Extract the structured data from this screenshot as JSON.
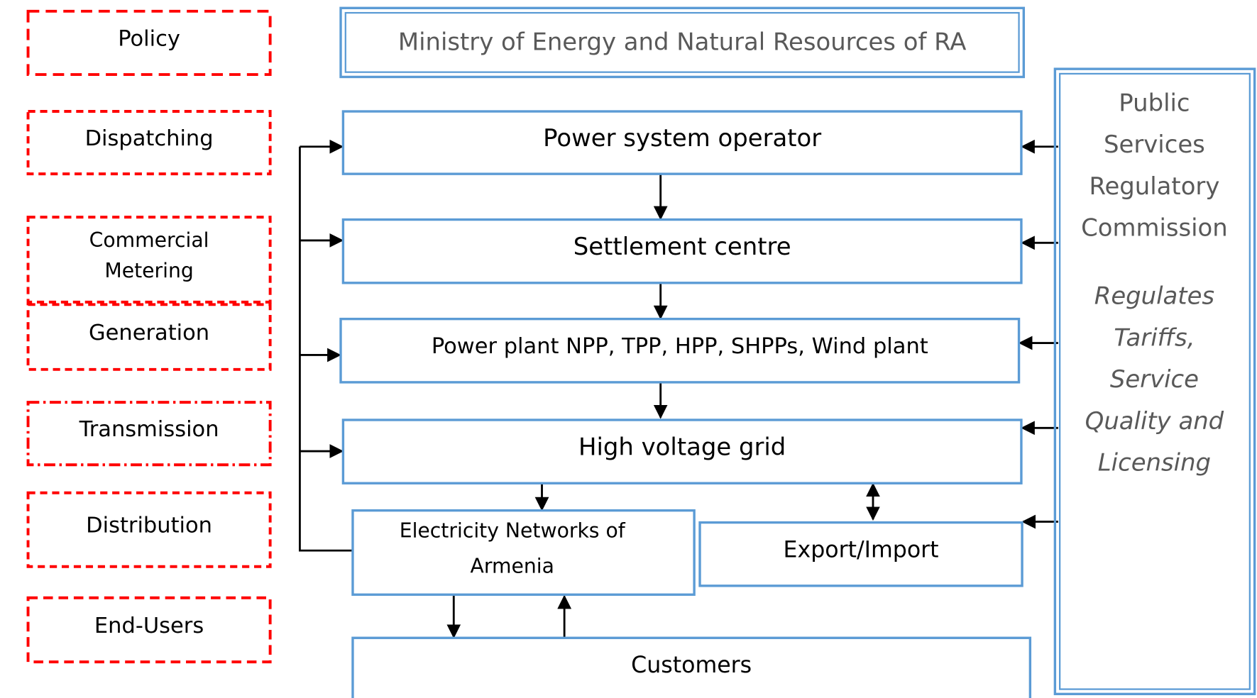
{
  "roles": [
    {
      "lines": [
        "Policy"
      ]
    },
    {
      "lines": [
        "Dispatching"
      ]
    },
    {
      "lines": [
        "Commercial",
        "Metering"
      ]
    },
    {
      "lines": [
        "Generation"
      ]
    },
    {
      "lines": [
        "Transmission"
      ]
    },
    {
      "lines": [
        "Distribution"
      ]
    },
    {
      "lines": [
        "End-Users"
      ]
    }
  ],
  "ministry": "Ministry of Energy and Natural Resources of RA",
  "entities": [
    {
      "lines": [
        "Power system operator"
      ]
    },
    {
      "lines": [
        "Settlement centre"
      ]
    },
    {
      "lines": [
        "Power plant NPP, TPP, HPP, SHPPs, Wind plant"
      ]
    },
    {
      "lines": [
        "High voltage grid"
      ]
    },
    {
      "lines": [
        "Electricity Networks of",
        "Armenia"
      ]
    },
    {
      "lines": [
        "Export/Import"
      ]
    },
    {
      "lines": [
        "Customers"
      ]
    }
  ],
  "regulator": {
    "name_lines": [
      "Public",
      "Services",
      "Regulatory",
      "Commission"
    ],
    "role_lines": [
      "Regulates",
      "Tariffs,",
      "Service",
      "Quality and",
      "Licensing"
    ]
  }
}
